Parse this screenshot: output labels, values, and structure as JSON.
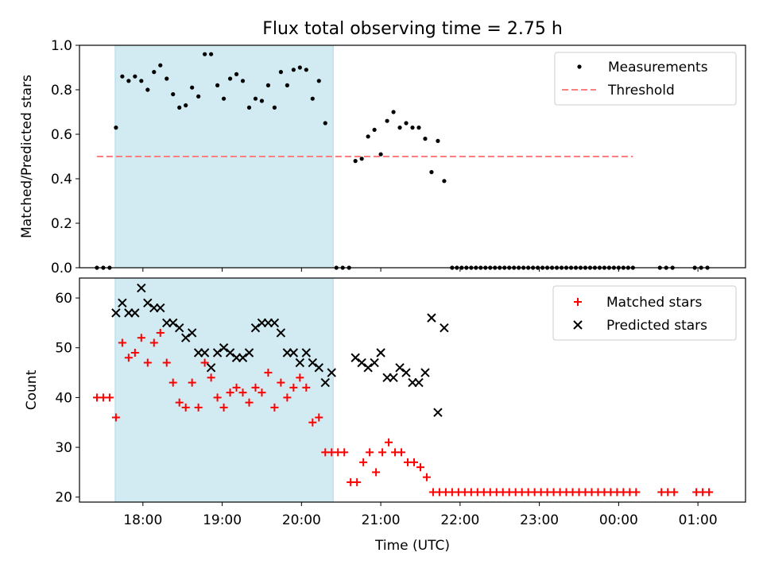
{
  "title": "Flux total observing time = 2.75 h",
  "colors": {
    "shade": "#add8e6",
    "threshold": "#ff7f7f",
    "matched": "#ff0000",
    "predicted": "#000000",
    "measurement": "#000000"
  },
  "chart_data": [
    {
      "type": "scatter",
      "ylabel": "Matched/Predicted stars",
      "xlim": [
        17.2,
        25.6
      ],
      "ylim": [
        0.0,
        1.0
      ],
      "yticks": [
        0.0,
        0.2,
        0.4,
        0.6,
        0.8,
        1.0
      ],
      "ytick_labels": [
        "0.0",
        "0.2",
        "0.4",
        "0.6",
        "0.8",
        "1.0"
      ],
      "shaded_span": [
        17.65,
        20.4
      ],
      "legend": {
        "placement": "upper right",
        "entries": [
          "Measurements",
          "Threshold"
        ]
      },
      "threshold": {
        "name": "Threshold",
        "value": 0.5,
        "x_range": [
          17.42,
          24.18
        ],
        "style": "dashed"
      },
      "series": [
        {
          "name": "Measurements",
          "marker": "dot",
          "points": [
            [
              17.42,
              0.0
            ],
            [
              17.5,
              0.0
            ],
            [
              17.58,
              0.0
            ],
            [
              17.66,
              0.63
            ],
            [
              17.74,
              0.86
            ],
            [
              17.82,
              0.84
            ],
            [
              17.9,
              0.86
            ],
            [
              17.98,
              0.84
            ],
            [
              18.06,
              0.8
            ],
            [
              18.14,
              0.88
            ],
            [
              18.22,
              0.91
            ],
            [
              18.3,
              0.85
            ],
            [
              18.38,
              0.78
            ],
            [
              18.46,
              0.72
            ],
            [
              18.54,
              0.73
            ],
            [
              18.62,
              0.81
            ],
            [
              18.7,
              0.77
            ],
            [
              18.78,
              0.96
            ],
            [
              18.86,
              0.96
            ],
            [
              18.94,
              0.82
            ],
            [
              19.02,
              0.76
            ],
            [
              19.1,
              0.85
            ],
            [
              19.18,
              0.87
            ],
            [
              19.26,
              0.84
            ],
            [
              19.34,
              0.72
            ],
            [
              19.42,
              0.76
            ],
            [
              19.5,
              0.75
            ],
            [
              19.58,
              0.82
            ],
            [
              19.66,
              0.72
            ],
            [
              19.74,
              0.88
            ],
            [
              19.82,
              0.82
            ],
            [
              19.9,
              0.89
            ],
            [
              19.98,
              0.9
            ],
            [
              20.06,
              0.89
            ],
            [
              20.14,
              0.76
            ],
            [
              20.22,
              0.84
            ],
            [
              20.3,
              0.65
            ],
            [
              20.44,
              0.0
            ],
            [
              20.52,
              0.0
            ],
            [
              20.6,
              0.0
            ],
            [
              20.68,
              0.48
            ],
            [
              20.76,
              0.49
            ],
            [
              20.84,
              0.59
            ],
            [
              20.92,
              0.62
            ],
            [
              21.0,
              0.51
            ],
            [
              21.08,
              0.66
            ],
            [
              21.16,
              0.7
            ],
            [
              21.24,
              0.63
            ],
            [
              21.32,
              0.65
            ],
            [
              21.4,
              0.63
            ],
            [
              21.48,
              0.63
            ],
            [
              21.56,
              0.58
            ],
            [
              21.64,
              0.43
            ],
            [
              21.72,
              0.57
            ],
            [
              21.8,
              0.39
            ],
            [
              21.9,
              0.0
            ],
            [
              21.96,
              0.0
            ],
            [
              22.02,
              0.0
            ],
            [
              22.08,
              0.0
            ],
            [
              22.14,
              0.0
            ],
            [
              22.2,
              0.0
            ],
            [
              22.26,
              0.0
            ],
            [
              22.32,
              0.0
            ],
            [
              22.38,
              0.0
            ],
            [
              22.44,
              0.0
            ],
            [
              22.5,
              0.0
            ],
            [
              22.56,
              0.0
            ],
            [
              22.62,
              0.0
            ],
            [
              22.68,
              0.0
            ],
            [
              22.74,
              0.0
            ],
            [
              22.8,
              0.0
            ],
            [
              22.86,
              0.0
            ],
            [
              22.92,
              0.0
            ],
            [
              22.98,
              0.0
            ],
            [
              23.04,
              0.0
            ],
            [
              23.1,
              0.0
            ],
            [
              23.16,
              0.0
            ],
            [
              23.22,
              0.0
            ],
            [
              23.28,
              0.0
            ],
            [
              23.34,
              0.0
            ],
            [
              23.4,
              0.0
            ],
            [
              23.46,
              0.0
            ],
            [
              23.52,
              0.0
            ],
            [
              23.58,
              0.0
            ],
            [
              23.64,
              0.0
            ],
            [
              23.7,
              0.0
            ],
            [
              23.76,
              0.0
            ],
            [
              23.82,
              0.0
            ],
            [
              23.88,
              0.0
            ],
            [
              23.94,
              0.0
            ],
            [
              24.0,
              0.0
            ],
            [
              24.06,
              0.0
            ],
            [
              24.12,
              0.0
            ],
            [
              24.18,
              0.0
            ],
            [
              24.52,
              0.0
            ],
            [
              24.6,
              0.0
            ],
            [
              24.68,
              0.0
            ],
            [
              24.96,
              0.0
            ],
            [
              25.04,
              0.0
            ],
            [
              25.12,
              0.0
            ]
          ]
        }
      ]
    },
    {
      "type": "scatter",
      "ylabel": "Count",
      "xlabel": "Time (UTC)",
      "xlim": [
        17.2,
        25.6
      ],
      "ylim": [
        19.0,
        64.0
      ],
      "yticks": [
        20,
        30,
        40,
        50,
        60
      ],
      "ytick_labels": [
        "20",
        "30",
        "40",
        "50",
        "60"
      ],
      "xticks": [
        18,
        19,
        20,
        21,
        22,
        23,
        24,
        25
      ],
      "xtick_labels": [
        "18:00",
        "19:00",
        "20:00",
        "21:00",
        "22:00",
        "23:00",
        "00:00",
        "01:00"
      ],
      "shaded_span": [
        17.65,
        20.4
      ],
      "legend": {
        "placement": "upper right",
        "entries": [
          "Matched stars",
          "Predicted stars"
        ]
      },
      "series": [
        {
          "name": "Matched stars",
          "marker": "plus",
          "points": [
            [
              17.42,
              40
            ],
            [
              17.5,
              40
            ],
            [
              17.58,
              40
            ],
            [
              17.66,
              36
            ],
            [
              17.74,
              51
            ],
            [
              17.82,
              48
            ],
            [
              17.9,
              49
            ],
            [
              17.98,
              52
            ],
            [
              18.06,
              47
            ],
            [
              18.14,
              51
            ],
            [
              18.22,
              53
            ],
            [
              18.3,
              47
            ],
            [
              18.38,
              43
            ],
            [
              18.46,
              39
            ],
            [
              18.54,
              38
            ],
            [
              18.62,
              43
            ],
            [
              18.7,
              38
            ],
            [
              18.78,
              47
            ],
            [
              18.86,
              44
            ],
            [
              18.94,
              40
            ],
            [
              19.02,
              38
            ],
            [
              19.1,
              41
            ],
            [
              19.18,
              42
            ],
            [
              19.26,
              41
            ],
            [
              19.34,
              39
            ],
            [
              19.42,
              42
            ],
            [
              19.5,
              41
            ],
            [
              19.58,
              45
            ],
            [
              19.66,
              38
            ],
            [
              19.74,
              43
            ],
            [
              19.82,
              40
            ],
            [
              19.9,
              42
            ],
            [
              19.98,
              44
            ],
            [
              20.06,
              42
            ],
            [
              20.14,
              35
            ],
            [
              20.22,
              36
            ],
            [
              20.3,
              29
            ],
            [
              20.38,
              29
            ],
            [
              20.46,
              29
            ],
            [
              20.54,
              29
            ],
            [
              20.62,
              23
            ],
            [
              20.7,
              23
            ],
            [
              20.78,
              27
            ],
            [
              20.86,
              29
            ],
            [
              20.94,
              25
            ],
            [
              21.02,
              29
            ],
            [
              21.1,
              31
            ],
            [
              21.18,
              29
            ],
            [
              21.26,
              29
            ],
            [
              21.34,
              27
            ],
            [
              21.42,
              27
            ],
            [
              21.5,
              26
            ],
            [
              21.58,
              24
            ],
            [
              21.66,
              21
            ],
            [
              21.74,
              21
            ],
            [
              21.82,
              21
            ],
            [
              21.9,
              21
            ],
            [
              21.98,
              21
            ],
            [
              22.06,
              21
            ],
            [
              22.14,
              21
            ],
            [
              22.22,
              21
            ],
            [
              22.3,
              21
            ],
            [
              22.38,
              21
            ],
            [
              22.46,
              21
            ],
            [
              22.54,
              21
            ],
            [
              22.62,
              21
            ],
            [
              22.7,
              21
            ],
            [
              22.78,
              21
            ],
            [
              22.86,
              21
            ],
            [
              22.94,
              21
            ],
            [
              23.02,
              21
            ],
            [
              23.1,
              21
            ],
            [
              23.18,
              21
            ],
            [
              23.26,
              21
            ],
            [
              23.34,
              21
            ],
            [
              23.42,
              21
            ],
            [
              23.5,
              21
            ],
            [
              23.58,
              21
            ],
            [
              23.66,
              21
            ],
            [
              23.74,
              21
            ],
            [
              23.82,
              21
            ],
            [
              23.9,
              21
            ],
            [
              23.98,
              21
            ],
            [
              24.06,
              21
            ],
            [
              24.14,
              21
            ],
            [
              24.22,
              21
            ],
            [
              24.54,
              21
            ],
            [
              24.62,
              21
            ],
            [
              24.7,
              21
            ],
            [
              24.98,
              21
            ],
            [
              25.06,
              21
            ],
            [
              25.14,
              21
            ]
          ]
        },
        {
          "name": "Predicted stars",
          "marker": "x",
          "points": [
            [
              17.66,
              57
            ],
            [
              17.74,
              59
            ],
            [
              17.82,
              57
            ],
            [
              17.9,
              57
            ],
            [
              17.98,
              62
            ],
            [
              18.06,
              59
            ],
            [
              18.14,
              58
            ],
            [
              18.22,
              58
            ],
            [
              18.3,
              55
            ],
            [
              18.38,
              55
            ],
            [
              18.46,
              54
            ],
            [
              18.54,
              52
            ],
            [
              18.62,
              53
            ],
            [
              18.7,
              49
            ],
            [
              18.78,
              49
            ],
            [
              18.86,
              46
            ],
            [
              18.94,
              49
            ],
            [
              19.02,
              50
            ],
            [
              19.1,
              49
            ],
            [
              19.18,
              48
            ],
            [
              19.26,
              48
            ],
            [
              19.34,
              49
            ],
            [
              19.42,
              54
            ],
            [
              19.5,
              55
            ],
            [
              19.58,
              55
            ],
            [
              19.66,
              55
            ],
            [
              19.74,
              53
            ],
            [
              19.82,
              49
            ],
            [
              19.9,
              49
            ],
            [
              19.98,
              47
            ],
            [
              20.06,
              49
            ],
            [
              20.14,
              47
            ],
            [
              20.22,
              46
            ],
            [
              20.3,
              43
            ],
            [
              20.38,
              45
            ],
            [
              20.68,
              48
            ],
            [
              20.76,
              47
            ],
            [
              20.84,
              46
            ],
            [
              20.92,
              47
            ],
            [
              21.0,
              49
            ],
            [
              21.08,
              44
            ],
            [
              21.16,
              44
            ],
            [
              21.24,
              46
            ],
            [
              21.32,
              45
            ],
            [
              21.4,
              43
            ],
            [
              21.48,
              43
            ],
            [
              21.56,
              45
            ],
            [
              21.64,
              56
            ],
            [
              21.72,
              37
            ],
            [
              21.8,
              54
            ]
          ]
        }
      ]
    }
  ]
}
